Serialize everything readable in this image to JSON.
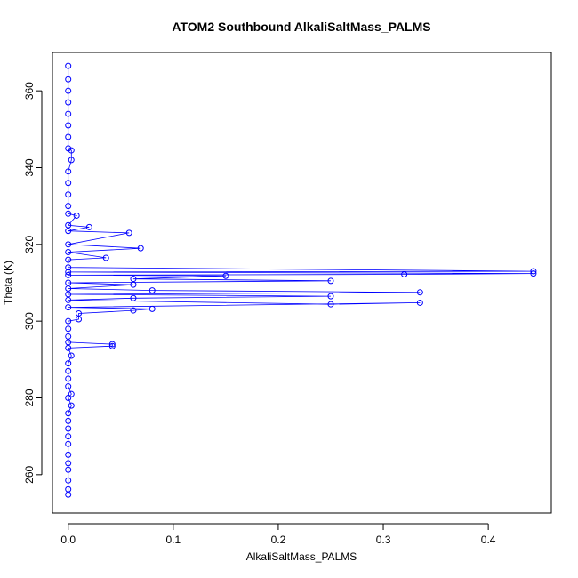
{
  "chart_data": {
    "type": "scatter",
    "title": "ATOM2 Southbound AlkaliSaltMass_PALMS",
    "xlabel": "AlkaliSaltMass_PALMS",
    "ylabel": "Theta (K)",
    "xlim": [
      -0.015,
      0.46
    ],
    "ylim": [
      250,
      370
    ],
    "xticks": [
      0.0,
      0.1,
      0.2,
      0.3,
      0.4
    ],
    "xtick_labels": [
      "0.0",
      "0.1",
      "0.2",
      "0.3",
      "0.4"
    ],
    "yticks": [
      260,
      280,
      300,
      320,
      340,
      360
    ],
    "ytick_labels": [
      "260",
      "280",
      "300",
      "320",
      "340",
      "360"
    ],
    "grid": false,
    "marker": "open circle",
    "connected": true,
    "color": "#0000ff",
    "series": [
      {
        "values": [
          {
            "x": 0.0,
            "y": 254.8
          },
          {
            "x": 0.0,
            "y": 256.2
          },
          {
            "x": 0.0,
            "y": 258.5
          },
          {
            "x": 0.0,
            "y": 261.3
          },
          {
            "x": 0.0,
            "y": 263.0
          },
          {
            "x": 0.0,
            "y": 265.2
          },
          {
            "x": 0.0,
            "y": 268.0
          },
          {
            "x": 0.0,
            "y": 270.0
          },
          {
            "x": 0.0,
            "y": 272.0
          },
          {
            "x": 0.0,
            "y": 274.0
          },
          {
            "x": 0.0,
            "y": 276.0
          },
          {
            "x": 0.003,
            "y": 278.0
          },
          {
            "x": 0.0,
            "y": 280.0
          },
          {
            "x": 0.003,
            "y": 281.0
          },
          {
            "x": 0.0,
            "y": 283.0
          },
          {
            "x": 0.0,
            "y": 285.0
          },
          {
            "x": 0.0,
            "y": 287.0
          },
          {
            "x": 0.0,
            "y": 289.0
          },
          {
            "x": 0.003,
            "y": 291.0
          },
          {
            "x": 0.0,
            "y": 293.0
          },
          {
            "x": 0.042,
            "y": 293.5
          },
          {
            "x": 0.042,
            "y": 294.0
          },
          {
            "x": 0.0,
            "y": 294.5
          },
          {
            "x": 0.0,
            "y": 296.0
          },
          {
            "x": 0.0,
            "y": 298.0
          },
          {
            "x": 0.0,
            "y": 300.0
          },
          {
            "x": 0.01,
            "y": 300.5
          },
          {
            "x": 0.01,
            "y": 302.0
          },
          {
            "x": 0.062,
            "y": 302.8
          },
          {
            "x": 0.08,
            "y": 303.2
          },
          {
            "x": 0.0,
            "y": 303.6
          },
          {
            "x": 0.335,
            "y": 304.8
          },
          {
            "x": 0.25,
            "y": 304.4
          },
          {
            "x": 0.0,
            "y": 305.5
          },
          {
            "x": 0.062,
            "y": 306.0
          },
          {
            "x": 0.25,
            "y": 306.5
          },
          {
            "x": 0.0,
            "y": 307.0
          },
          {
            "x": 0.335,
            "y": 307.5
          },
          {
            "x": 0.08,
            "y": 308.0
          },
          {
            "x": 0.0,
            "y": 308.5
          },
          {
            "x": 0.062,
            "y": 309.5
          },
          {
            "x": 0.0,
            "y": 310.0
          },
          {
            "x": 0.25,
            "y": 310.5
          },
          {
            "x": 0.062,
            "y": 311.0
          },
          {
            "x": 0.15,
            "y": 311.8
          },
          {
            "x": 0.0,
            "y": 312.0
          },
          {
            "x": 0.32,
            "y": 312.2
          },
          {
            "x": 0.443,
            "y": 312.4
          },
          {
            "x": 0.0,
            "y": 312.8
          },
          {
            "x": 0.443,
            "y": 313.0
          },
          {
            "x": 0.0,
            "y": 314.0
          },
          {
            "x": 0.0,
            "y": 316.0
          },
          {
            "x": 0.036,
            "y": 316.5
          },
          {
            "x": 0.0,
            "y": 318.0
          },
          {
            "x": 0.069,
            "y": 319.0
          },
          {
            "x": 0.0,
            "y": 320.0
          },
          {
            "x": 0.058,
            "y": 323.0
          },
          {
            "x": 0.0,
            "y": 323.5
          },
          {
            "x": 0.02,
            "y": 324.5
          },
          {
            "x": 0.0,
            "y": 325.0
          },
          {
            "x": 0.008,
            "y": 327.5
          },
          {
            "x": 0.0,
            "y": 328.0
          },
          {
            "x": 0.0,
            "y": 330.0
          },
          {
            "x": 0.0,
            "y": 333.0
          },
          {
            "x": 0.0,
            "y": 336.0
          },
          {
            "x": 0.0,
            "y": 339.0
          },
          {
            "x": 0.003,
            "y": 342.0
          },
          {
            "x": 0.003,
            "y": 344.5
          },
          {
            "x": 0.0,
            "y": 345.0
          },
          {
            "x": 0.0,
            "y": 348.0
          },
          {
            "x": 0.0,
            "y": 351.0
          },
          {
            "x": 0.0,
            "y": 354.0
          },
          {
            "x": 0.0,
            "y": 357.0
          },
          {
            "x": 0.0,
            "y": 360.0
          },
          {
            "x": 0.0,
            "y": 363.0
          },
          {
            "x": 0.0,
            "y": 366.5
          }
        ]
      }
    ]
  }
}
